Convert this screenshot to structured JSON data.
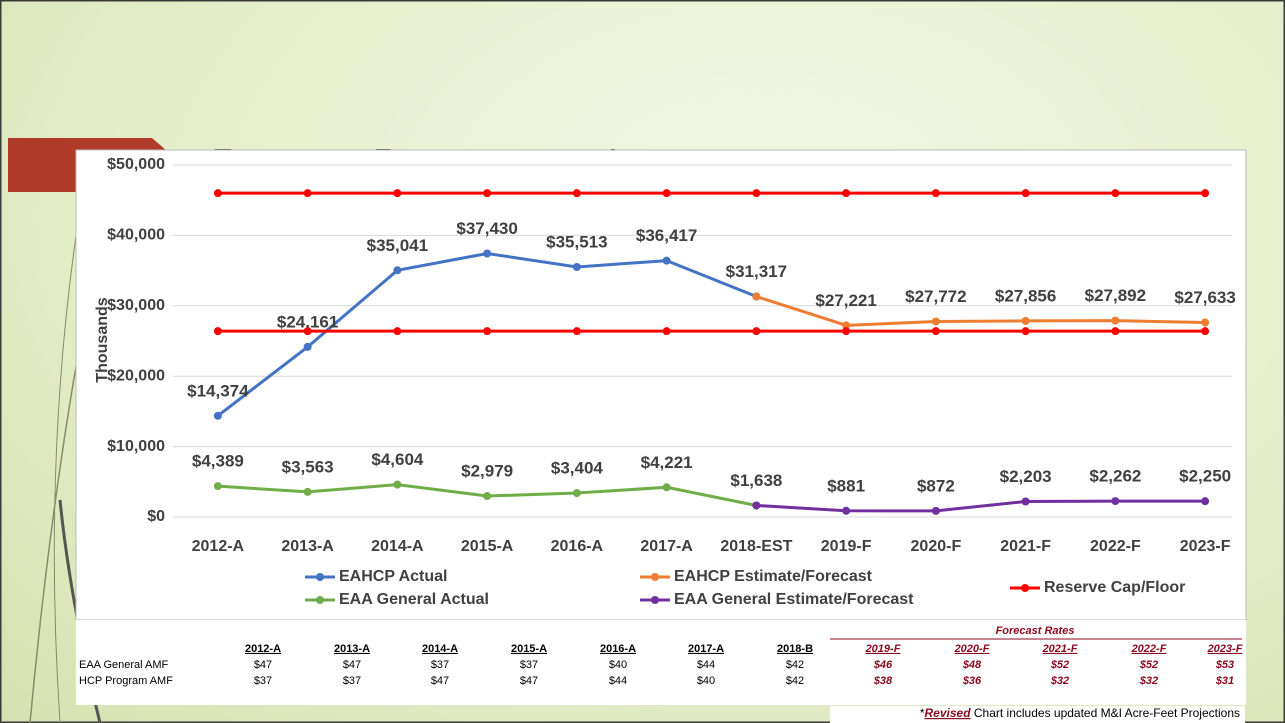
{
  "title": "Reserve Projections *",
  "chart_data": {
    "type": "line",
    "y_label": "Thousands",
    "categories": [
      "2012-A",
      "2013-A",
      "2014-A",
      "2015-A",
      "2016-A",
      "2017-A",
      "2018-EST",
      "2019-F",
      "2020-F",
      "2021-F",
      "2022-F",
      "2023-F"
    ],
    "ylim": [
      0,
      50000
    ],
    "yticks": [
      {
        "value": 0,
        "label": "$0"
      },
      {
        "value": 10000,
        "label": "$10,000"
      },
      {
        "value": 20000,
        "label": "$20,000"
      },
      {
        "value": 30000,
        "label": "$30,000"
      },
      {
        "value": 40000,
        "label": "$40,000"
      },
      {
        "value": 50000,
        "label": "$50,000"
      }
    ],
    "grid": true,
    "series": [
      {
        "name": "EAHCP Actual",
        "color": "#4472c4",
        "values": [
          14374,
          24161,
          35041,
          37430,
          35513,
          36417,
          31317,
          null,
          null,
          null,
          null,
          null
        ],
        "value_labels": [
          "$14,374",
          "$24,161",
          "$35,041",
          "$37,430",
          "$35,513",
          "$36,417",
          "$31,317",
          null,
          null,
          null,
          null,
          null
        ]
      },
      {
        "name": "EAHCP Estimate/Forecast",
        "color": "#ed7d31",
        "values": [
          null,
          null,
          null,
          null,
          null,
          null,
          31317,
          27221,
          27772,
          27856,
          27892,
          27633
        ],
        "value_labels": [
          null,
          null,
          null,
          null,
          null,
          null,
          null,
          "$27,221",
          "$27,772",
          "$27,856",
          "$27,892",
          "$27,633"
        ]
      },
      {
        "name": "Reserve Cap/Floor",
        "color": "#ff0000",
        "values": [
          46000,
          46000,
          46000,
          46000,
          46000,
          46000,
          46000,
          46000,
          46000,
          46000,
          46000,
          46000
        ],
        "floor_values": [
          26400,
          26400,
          26400,
          26400,
          26400,
          26400,
          26400,
          26400,
          26400,
          26400,
          26400,
          26400
        ]
      },
      {
        "name": "EAA General Actual",
        "color": "#70ad47",
        "values": [
          4389,
          3563,
          4604,
          2979,
          3404,
          4221,
          1638,
          null,
          null,
          null,
          null,
          null
        ],
        "value_labels": [
          "$4,389",
          "$3,563",
          "$4,604",
          "$2,979",
          "$3,404",
          "$4,221",
          "$1,638",
          null,
          null,
          null,
          null,
          null
        ]
      },
      {
        "name": "EAA General Estimate/Forecast",
        "color": "#7030a0",
        "values": [
          null,
          null,
          null,
          null,
          null,
          null,
          1638,
          881,
          872,
          2203,
          2262,
          2250
        ],
        "value_labels": [
          null,
          null,
          null,
          null,
          null,
          null,
          null,
          "$881",
          "$872",
          "$2,203",
          "$2,262",
          "$2,250"
        ]
      }
    ]
  },
  "table": {
    "columns": [
      "2012-A",
      "2013-A",
      "2014-A",
      "2015-A",
      "2016-A",
      "2017-A",
      "2018-B"
    ],
    "forecast": {
      "title": "Forecast Rates",
      "columns": [
        "2019-F",
        "2020-F",
        "2021-F",
        "2022-F",
        "2023-F"
      ]
    },
    "rows": [
      {
        "label": "EAA General AMF",
        "values": [
          "$47",
          "$47",
          "$37",
          "$37",
          "$40",
          "$44",
          "$42"
        ],
        "forecast": [
          "$46",
          "$48",
          "$52",
          "$52",
          "$53"
        ]
      },
      {
        "label": "HCP Program AMF",
        "values": [
          "$37",
          "$37",
          "$47",
          "$47",
          "$44",
          "$40",
          "$42"
        ],
        "forecast": [
          "$38",
          "$36",
          "$32",
          "$32",
          "$31"
        ]
      }
    ]
  },
  "footnote": {
    "mark": "*",
    "emphasis": "Revised",
    "text": " Chart includes updated M&I Acre-Feet Projections"
  }
}
